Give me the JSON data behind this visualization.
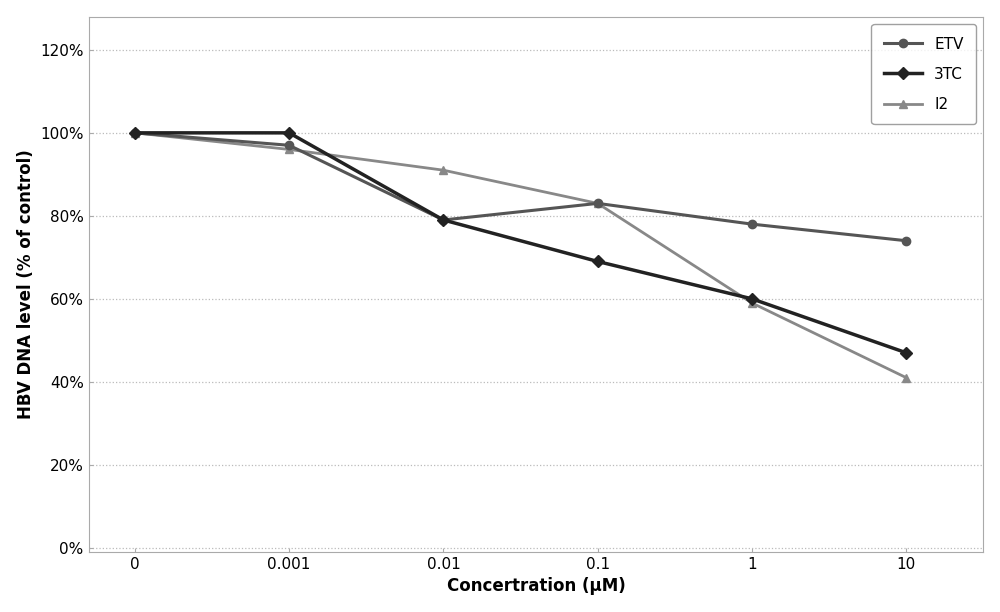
{
  "x_labels": [
    "0",
    "0.001",
    "0.01",
    "0.1",
    "1",
    "10"
  ],
  "x_positions": [
    0,
    1,
    2,
    3,
    4,
    5
  ],
  "series": [
    {
      "name": "ETV",
      "y": [
        1.0,
        0.97,
        0.79,
        0.83,
        0.78,
        0.74
      ],
      "color": "#555555",
      "marker": "o",
      "marker_size": 6,
      "linewidth": 2.2,
      "zorder": 3
    },
    {
      "name": "3TC",
      "y": [
        1.0,
        1.0,
        0.79,
        0.69,
        0.6,
        0.47
      ],
      "color": "#222222",
      "marker": "D",
      "marker_size": 6,
      "linewidth": 2.5,
      "zorder": 4
    },
    {
      "name": "I2",
      "y": [
        1.0,
        0.96,
        0.91,
        0.83,
        0.59,
        0.41
      ],
      "color": "#888888",
      "marker": "^",
      "marker_size": 6,
      "linewidth": 2.0,
      "zorder": 2
    }
  ],
  "xlabel": "Concertration (μM)",
  "ylabel": "HBV DNA level (% of control)",
  "ylim": [
    -0.01,
    1.28
  ],
  "yticks": [
    0.0,
    0.2,
    0.4,
    0.6,
    0.8,
    1.0,
    1.2
  ],
  "ytick_labels": [
    "0%",
    "20%",
    "40%",
    "60%",
    "80%",
    "100%",
    "120%"
  ],
  "background_color": "#ffffff",
  "grid_color": "#bbbbbb",
  "axis_label_fontsize": 12,
  "tick_fontsize": 11,
  "legend_fontsize": 11
}
